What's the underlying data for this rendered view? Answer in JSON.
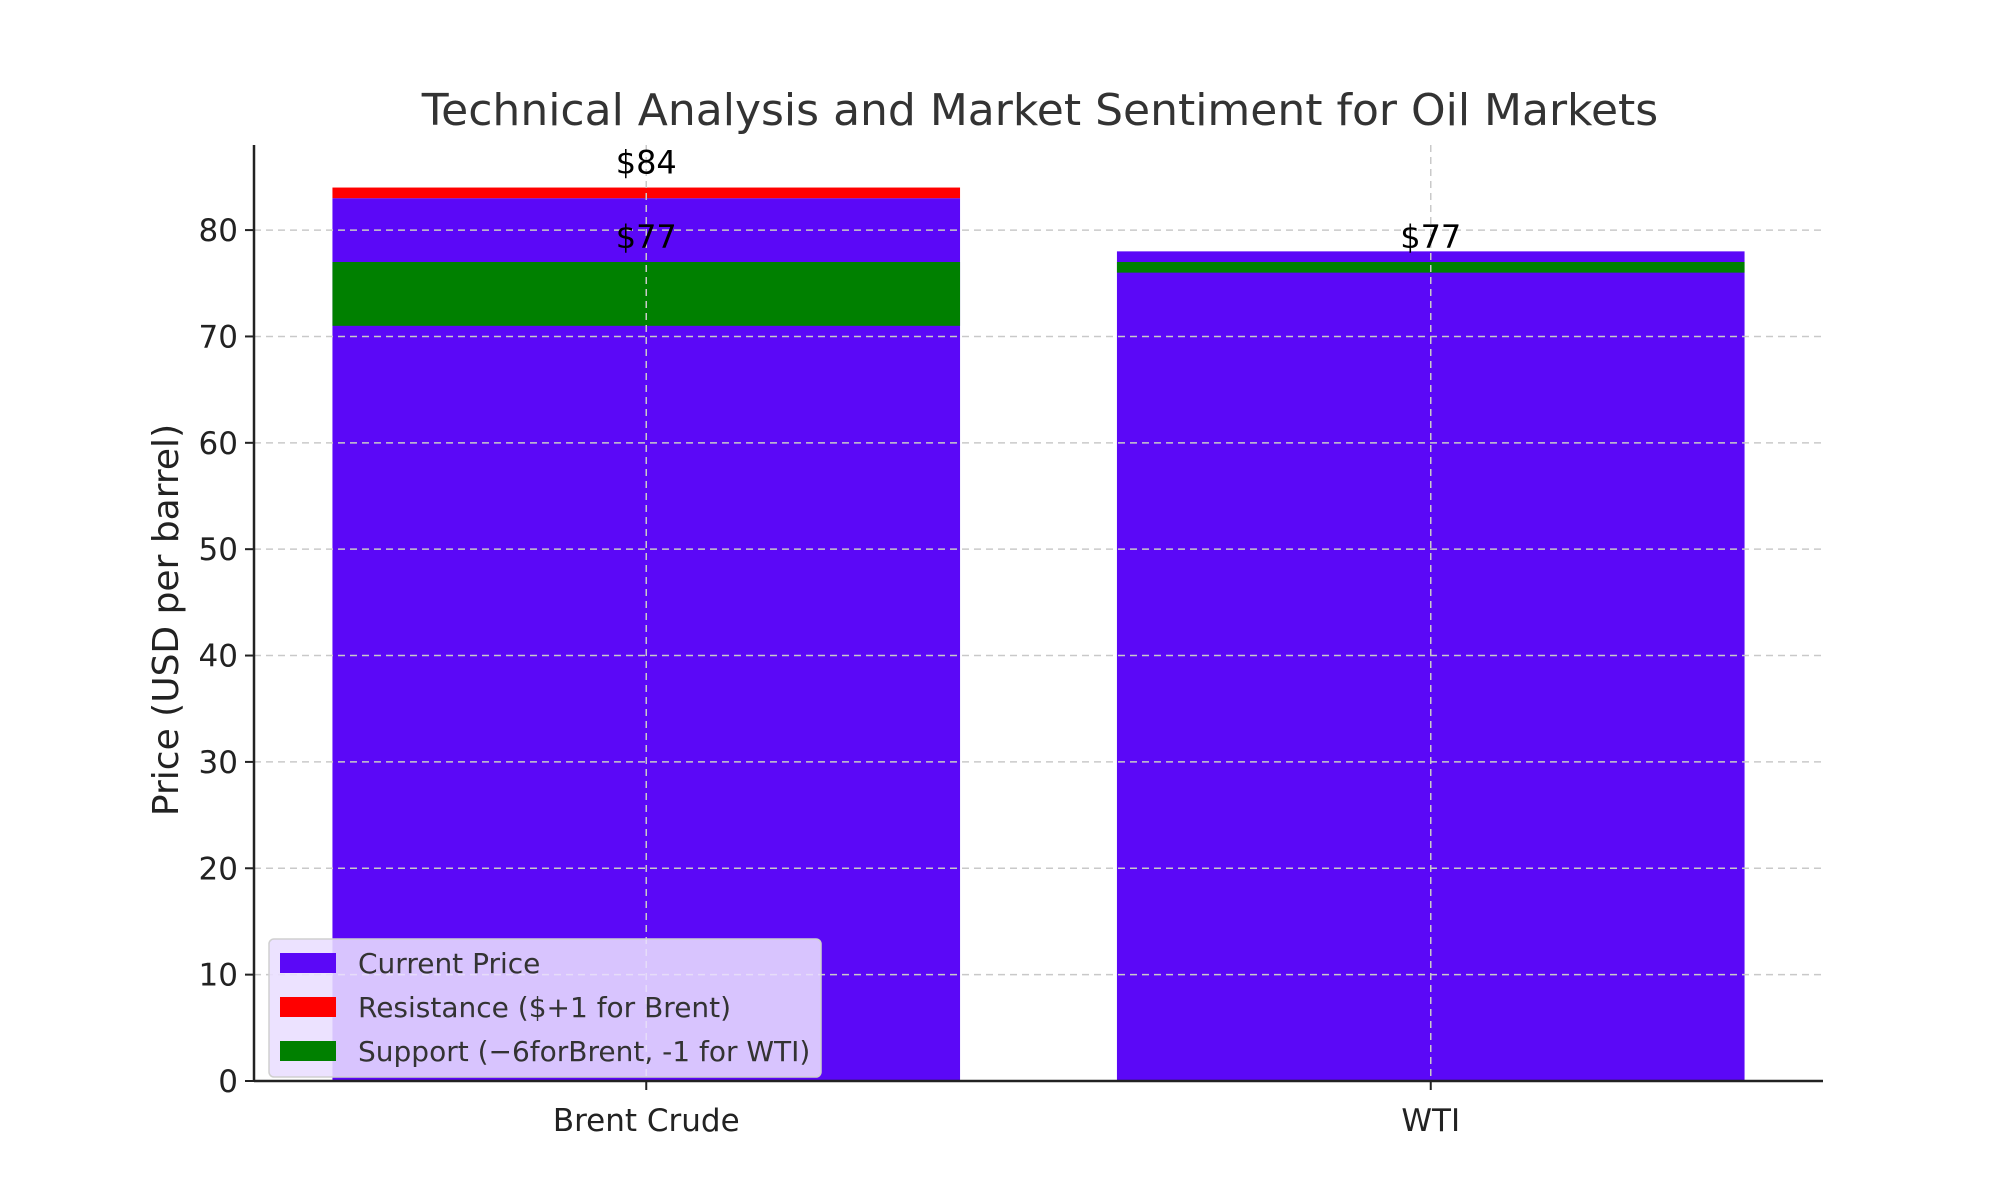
{
  "chart_data": {
    "type": "bar",
    "title": "Technical Analysis and Market Sentiment for Oil Markets",
    "xlabel": "",
    "ylabel": "Price (USD per barrel)",
    "categories": [
      "Brent Crude",
      "WTI"
    ],
    "ylim": [
      0,
      88
    ],
    "yticks": [
      0,
      10,
      20,
      30,
      40,
      50,
      60,
      70,
      80
    ],
    "grid": true,
    "legend_position": "lower-left",
    "series": [
      {
        "name": "Current Price",
        "color": "#5b08f7",
        "values": [
          83,
          78
        ]
      },
      {
        "name": "Resistance ($+1 for Brent)",
        "color": "#ff0000",
        "ranges": [
          [
            83,
            84
          ],
          null
        ]
      },
      {
        "name": "Support (−6forBrent, -1 for WTI)",
        "color": "#008000",
        "ranges": [
          [
            71,
            77
          ],
          [
            76,
            77
          ]
        ]
      }
    ],
    "annotations": [
      {
        "category": "Brent Crude",
        "text": "$84",
        "value": 84
      },
      {
        "category": "Brent Crude",
        "text": "$77",
        "value": 77
      },
      {
        "category": "WTI",
        "text": "$77",
        "value": 77
      }
    ]
  }
}
